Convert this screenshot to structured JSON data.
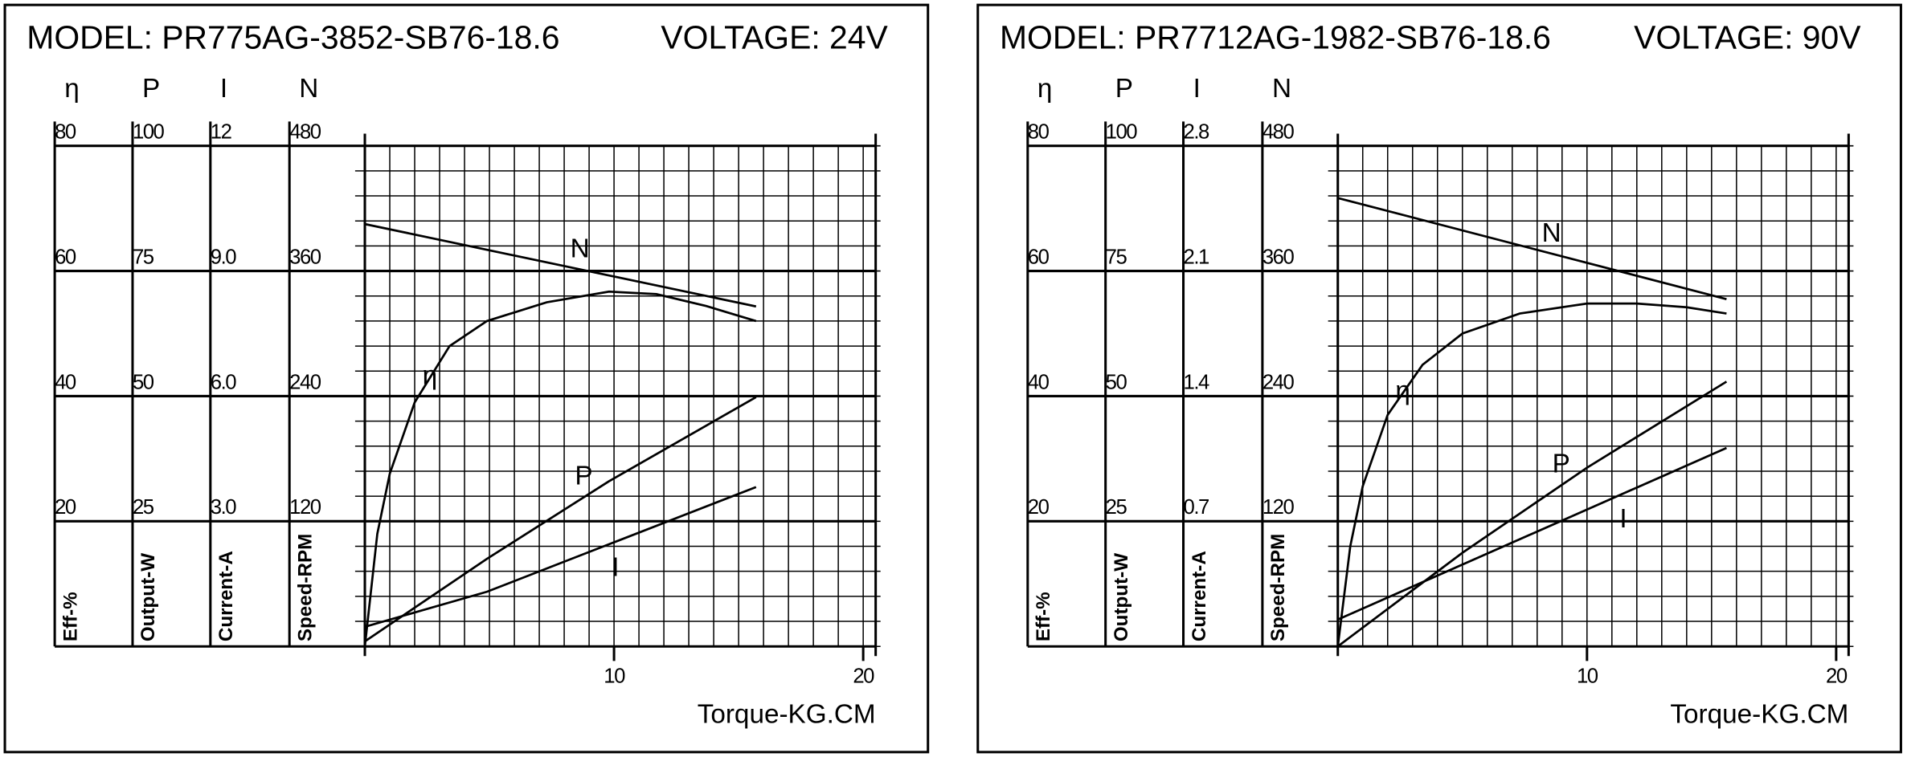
{
  "chart_data": [
    {
      "type": "line",
      "title": "MODEL: PR775AG-3852-SB76-18.6",
      "subtitle": "VOLTAGE: 24V",
      "xlabel": "Torque-KG.CM",
      "xlim": [
        0,
        20.5
      ],
      "xticks": [
        10,
        20
      ],
      "grid_x_step": 1,
      "grid_y_divisions": 20,
      "color": "#000000",
      "axes": [
        {
          "symbol": "η",
          "label": "Eff-%",
          "ylim": [
            0,
            80
          ],
          "yticks": [
            20,
            40,
            60,
            80
          ]
        },
        {
          "symbol": "P",
          "label": "Output-W",
          "ylim": [
            0,
            100
          ],
          "yticks": [
            25,
            50,
            75,
            100
          ]
        },
        {
          "symbol": "I",
          "label": "Current-A",
          "ylim": [
            0,
            12
          ],
          "yticks": [
            {
              "value": 3,
              "label": "3.0"
            },
            {
              "value": 6,
              "label": "6.0"
            },
            {
              "value": 9,
              "label": "9.0"
            },
            12
          ]
        },
        {
          "symbol": "N",
          "label": "Speed-RPM",
          "ylim": [
            0,
            480
          ],
          "yticks": [
            120,
            240,
            360,
            480
          ]
        }
      ],
      "series": [
        {
          "name": "N",
          "axis": 3,
          "x": [
            0,
            15.7
          ],
          "values": [
            405,
            326
          ]
        },
        {
          "name": "η",
          "axis": 0,
          "x": [
            0,
            0.5,
            1,
            2,
            3.4,
            4.9,
            7.3,
            9.8,
            11.7,
            13.7,
            15.7
          ],
          "values": [
            0,
            18,
            27.6,
            39,
            48,
            52,
            55,
            56.7,
            56.3,
            54.4,
            52
          ]
        },
        {
          "name": "P",
          "axis": 1,
          "x": [
            0,
            4.9,
            9.8,
            15.7
          ],
          "values": [
            1,
            17.5,
            33,
            49.8
          ]
        },
        {
          "name": "I",
          "axis": 2,
          "x": [
            0,
            4.9,
            15.7
          ],
          "values": [
            0.47,
            1.31,
            3.82
          ]
        }
      ]
    },
    {
      "type": "line",
      "title": "MODEL: PR7712AG-1982-SB76-18.6",
      "subtitle": "VOLTAGE: 90V",
      "xlabel": "Torque-KG.CM",
      "xlim": [
        0,
        20.5
      ],
      "xticks": [
        10,
        20
      ],
      "grid_x_step": 1,
      "grid_y_divisions": 20,
      "color": "#000000",
      "axes": [
        {
          "symbol": "η",
          "label": "Eff-%",
          "ylim": [
            0,
            80
          ],
          "yticks": [
            20,
            40,
            60,
            80
          ]
        },
        {
          "symbol": "P",
          "label": "Output-W",
          "ylim": [
            0,
            100
          ],
          "yticks": [
            25,
            50,
            75,
            100
          ]
        },
        {
          "symbol": "I",
          "label": "Current-A",
          "ylim": [
            0,
            2.8
          ],
          "yticks": [
            0.7,
            1.4,
            2.1,
            2.8
          ]
        },
        {
          "symbol": "N",
          "label": "Speed-RPM",
          "ylim": [
            0,
            480
          ],
          "yticks": [
            120,
            240,
            360,
            480
          ]
        }
      ],
      "series": [
        {
          "name": "N",
          "axis": 3,
          "x": [
            0,
            15.6
          ],
          "values": [
            430,
            333
          ]
        },
        {
          "name": "η",
          "axis": 0,
          "x": [
            0,
            0.5,
            1,
            2,
            3.4,
            5,
            7.3,
            10,
            12,
            14,
            15.6
          ],
          "values": [
            0,
            16,
            25.6,
            37,
            45,
            50,
            53.2,
            54.8,
            54.8,
            54.2,
            53.2
          ]
        },
        {
          "name": "P",
          "axis": 1,
          "x": [
            0,
            5,
            10,
            15.6
          ],
          "values": [
            0,
            18.7,
            35.7,
            52.9
          ]
        },
        {
          "name": "I",
          "axis": 2,
          "x": [
            0,
            15.6
          ],
          "values": [
            0.15,
            1.11
          ]
        }
      ]
    }
  ]
}
